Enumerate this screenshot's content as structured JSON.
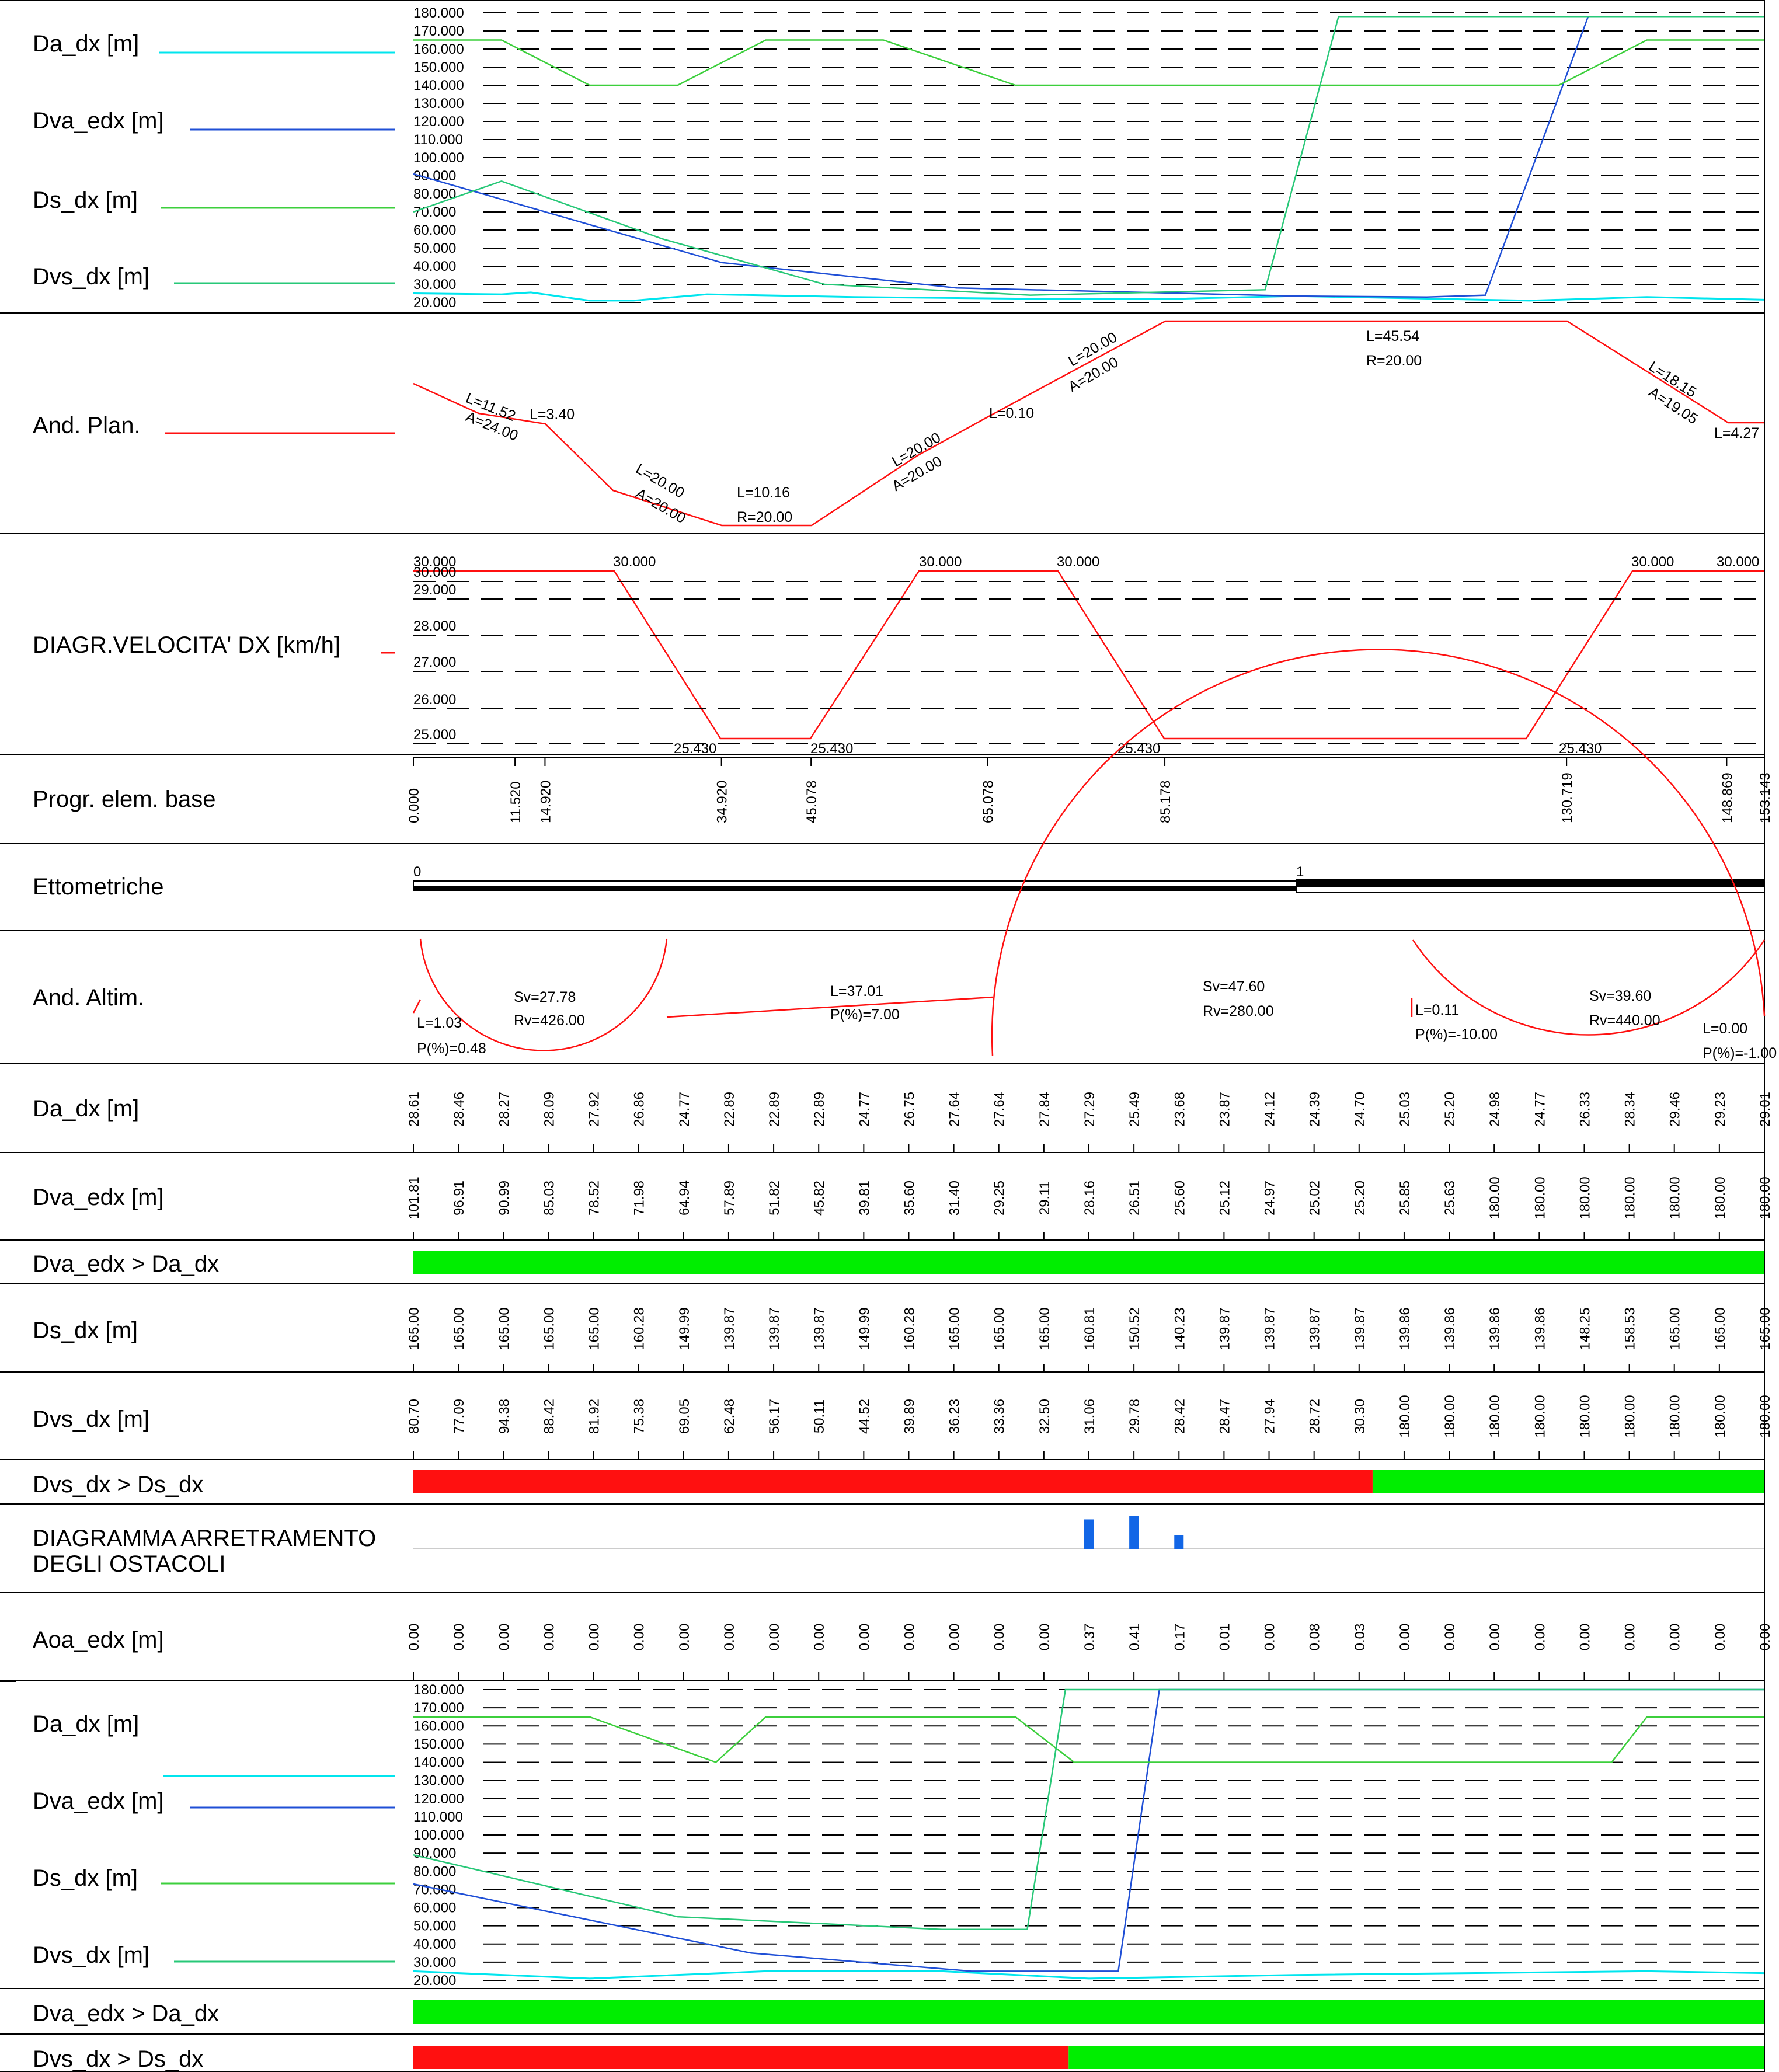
{
  "panels": [
    {
      "label": "Da_dx [m]"
    },
    {
      "label": "Dva_edx [m]"
    },
    {
      "label": "Ds_dx [m]"
    },
    {
      "label": "Dvs_dx [m]"
    }
  ],
  "colors": {
    "da": "#00e5ee",
    "dva": "#1f4fd6",
    "ds": "#3ccf3c",
    "dvs": "#28c878",
    "red": "#ff1010",
    "green": "#00ee00",
    "bar": "#1266e6"
  },
  "rows": {
    "top_da": "Da_dx [m]",
    "top_dva": "Dva_edx [m]",
    "top_ds": "Ds_dx [m]",
    "top_dvs": "Dvs_dx [m]",
    "and_plan": "And. Plan.",
    "diagr_vel": "DIAGR.VELOCITA' DX [km/h]",
    "progr": "Progr. elem. base",
    "ettometriche": "Ettometriche",
    "and_altim": "And. Altim.",
    "da_dx": "Da_dx [m]",
    "dva_edx": "Dva_edx [m]",
    "cmp1": "Dva_edx > Da_dx",
    "ds_dx": "Ds_dx [m]",
    "dvs_dx": "Dvs_dx [m]",
    "cmp2": "Dvs_dx > Ds_dx",
    "arretr1": "DIAGRAMMA ARRETRAMENTO",
    "arretr2": "DEGLI OSTACOLI",
    "aoa": "Aoa_edx [m]",
    "bot_da": "Da_dx [m]",
    "bot_dva": "Dva_edx [m]",
    "bot_ds": "Ds_dx [m]",
    "bot_dvs": "Dvs_dx [m]",
    "cmp3": "Dva_edx > Da_dx",
    "cmp4": "Dvs_dx > Ds_dx"
  },
  "y_ticks": [
    "180.000",
    "170.000",
    "160.000",
    "150.000",
    "140.000",
    "130.000",
    "120.000",
    "110.000",
    "100.000",
    "90.000",
    "80.000",
    "70.000",
    "60.000",
    "50.000",
    "40.000",
    "30.000",
    "20.000"
  ],
  "speed_ticks": [
    "30.000",
    "29.000",
    "28.000",
    "27.000",
    "26.000",
    "25.000"
  ],
  "speed_labels": {
    "top": "30.000",
    "low": "25.430"
  },
  "progressive": [
    "0.000",
    "11.520",
    "14.920",
    "34.920",
    "45.078",
    "65.078",
    "65.078",
    "85.178",
    "130.719",
    "148.869",
    "153.143"
  ],
  "ettometriche": {
    "start": "0",
    "mark": "1"
  },
  "plan_labels": {
    "a": "L=11.52",
    "b": "A=24.00",
    "c": "L=3.40",
    "d": "L=20.00",
    "e": "A=20.00",
    "f": "L=10.16",
    "g": "R=20.00",
    "h": "L=20.00",
    "i": "A=20.00",
    "j": "L=0.10",
    "k": "L=20.00",
    "l": "A=20.00",
    "m": "L=45.54",
    "n": "R=20.00",
    "o": "L=18.15",
    "p": "A=19.05",
    "q": "L=4.27"
  },
  "altim_labels": {
    "a": "L=1.03",
    "b": "P(%)=0.48",
    "c": "Sv=27.78",
    "d": "Rv=426.00",
    "e": "L=37.01",
    "f": "P(%)=7.00",
    "g": "Sv=47.60",
    "h": "Rv=280.00",
    "i": "L=0.11",
    "j": "P(%)=-10.00",
    "k": "Sv=39.60",
    "l": "Rv=440.00",
    "m": "L=0.00",
    "n": "P(%)=-1.00"
  },
  "tables": {
    "da_dx": [
      "28.61",
      "28.46",
      "28.27",
      "28.09",
      "27.92",
      "26.86",
      "24.77",
      "22.89",
      "22.89",
      "22.89",
      "24.77",
      "26.75",
      "27.64",
      "27.64",
      "27.84",
      "27.29",
      "25.49",
      "23.68",
      "23.87",
      "24.12",
      "24.39",
      "24.70",
      "25.03",
      "25.20",
      "24.98",
      "24.77",
      "26.33",
      "28.34",
      "29.46",
      "29.23",
      "29.01"
    ],
    "dva_edx": [
      "101.81",
      "96.91",
      "90.99",
      "85.03",
      "78.52",
      "71.98",
      "64.94",
      "57.89",
      "51.82",
      "45.82",
      "39.81",
      "35.60",
      "31.40",
      "29.25",
      "29.11",
      "28.16",
      "26.51",
      "25.60",
      "25.12",
      "24.97",
      "25.02",
      "25.20",
      "25.85",
      "25.63",
      "180.00",
      "180.00",
      "180.00",
      "180.00",
      "180.00",
      "180.00",
      "180.00"
    ],
    "ds_dx": [
      "165.00",
      "165.00",
      "165.00",
      "165.00",
      "165.00",
      "160.28",
      "149.99",
      "139.87",
      "139.87",
      "139.87",
      "149.99",
      "160.28",
      "165.00",
      "165.00",
      "165.00",
      "160.81",
      "150.52",
      "140.23",
      "139.87",
      "139.87",
      "139.87",
      "139.87",
      "139.86",
      "139.86",
      "139.86",
      "139.86",
      "148.25",
      "158.53",
      "165.00",
      "165.00",
      "165.00"
    ],
    "dvs_dx": [
      "80.70",
      "77.09",
      "94.38",
      "88.42",
      "81.92",
      "75.38",
      "69.05",
      "62.48",
      "56.17",
      "50.11",
      "44.52",
      "39.89",
      "36.23",
      "33.36",
      "32.50",
      "31.06",
      "29.78",
      "28.42",
      "28.47",
      "27.94",
      "28.72",
      "30.30",
      "180.00",
      "180.00",
      "180.00",
      "180.00",
      "180.00",
      "180.00",
      "180.00",
      "180.00",
      "180.00"
    ],
    "aoa": [
      "0.00",
      "0.00",
      "0.00",
      "0.00",
      "0.00",
      "0.00",
      "0.00",
      "0.00",
      "0.00",
      "0.00",
      "0.00",
      "0.00",
      "0.00",
      "0.00",
      "0.00",
      "0.37",
      "0.41",
      "0.17",
      "0.01",
      "0.00",
      "0.08",
      "0.03",
      "0.00",
      "0.00",
      "0.00",
      "0.00",
      "0.00",
      "0.00",
      "0.00",
      "0.00",
      "0.00"
    ]
  },
  "series": {
    "top": {
      "da": [
        [
          0,
          25
        ],
        [
          30,
          24.5
        ],
        [
          40,
          25.5
        ],
        [
          60,
          21
        ],
        [
          75,
          21
        ],
        [
          100,
          24.5
        ],
        [
          150,
          23
        ],
        [
          210,
          22
        ],
        [
          260,
          22
        ],
        [
          300,
          23.5
        ],
        [
          380,
          21
        ],
        [
          420,
          23
        ],
        [
          460,
          21.5
        ]
      ],
      "dva": [
        [
          0,
          91
        ],
        [
          105,
          42
        ],
        [
          185,
          28
        ],
        [
          300,
          23.5
        ],
        [
          345,
          23
        ],
        [
          365,
          24
        ],
        [
          400,
          178
        ],
        [
          460,
          178
        ]
      ],
      "ds": [
        [
          0,
          165
        ],
        [
          30,
          165
        ],
        [
          60,
          140
        ],
        [
          90,
          140
        ],
        [
          120,
          165
        ],
        [
          160,
          165
        ],
        [
          205,
          140
        ],
        [
          350,
          140
        ],
        [
          390,
          140
        ],
        [
          420,
          165
        ],
        [
          460,
          165
        ]
      ],
      "dvs": [
        [
          0,
          70
        ],
        [
          30,
          87
        ],
        [
          85,
          55
        ],
        [
          140,
          30
        ],
        [
          210,
          24
        ],
        [
          290,
          27
        ],
        [
          315,
          178
        ],
        [
          460,
          178
        ]
      ]
    },
    "bottom": {
      "da": [
        [
          0,
          25
        ],
        [
          60,
          21
        ],
        [
          120,
          25
        ],
        [
          180,
          25
        ],
        [
          230,
          21
        ],
        [
          300,
          23
        ],
        [
          420,
          25
        ],
        [
          460,
          24
        ]
      ],
      "dva": [
        [
          0,
          73
        ],
        [
          115,
          35
        ],
        [
          190,
          25
        ],
        [
          240,
          25
        ],
        [
          254,
          180
        ],
        [
          460,
          180
        ]
      ],
      "ds": [
        [
          0,
          165
        ],
        [
          60,
          165
        ],
        [
          103,
          140
        ],
        [
          120,
          165
        ],
        [
          205,
          165
        ],
        [
          225,
          140
        ],
        [
          408,
          140
        ],
        [
          420,
          165
        ],
        [
          460,
          165
        ]
      ],
      "dvs": [
        [
          0,
          89
        ],
        [
          90,
          55
        ],
        [
          180,
          48
        ],
        [
          209,
          48
        ],
        [
          222,
          180
        ],
        [
          460,
          180
        ]
      ]
    }
  },
  "comparisons": {
    "cmp1": [
      {
        "from": 0,
        "to": 1,
        "state": "ok"
      }
    ],
    "cmp2": [
      {
        "from": 0,
        "to": 0.71,
        "state": "fail"
      },
      {
        "from": 0.71,
        "to": 1,
        "state": "ok"
      }
    ],
    "cmp3": [
      {
        "from": 0,
        "to": 1,
        "state": "ok"
      }
    ],
    "cmp4": [
      {
        "from": 0,
        "to": 0.485,
        "state": "fail"
      },
      {
        "from": 0.485,
        "to": 1,
        "state": "ok"
      }
    ]
  },
  "arretramento": [
    {
      "station": 15,
      "value": 0.37
    },
    {
      "station": 16,
      "value": 0.41
    },
    {
      "station": 17,
      "value": 0.17
    }
  ]
}
